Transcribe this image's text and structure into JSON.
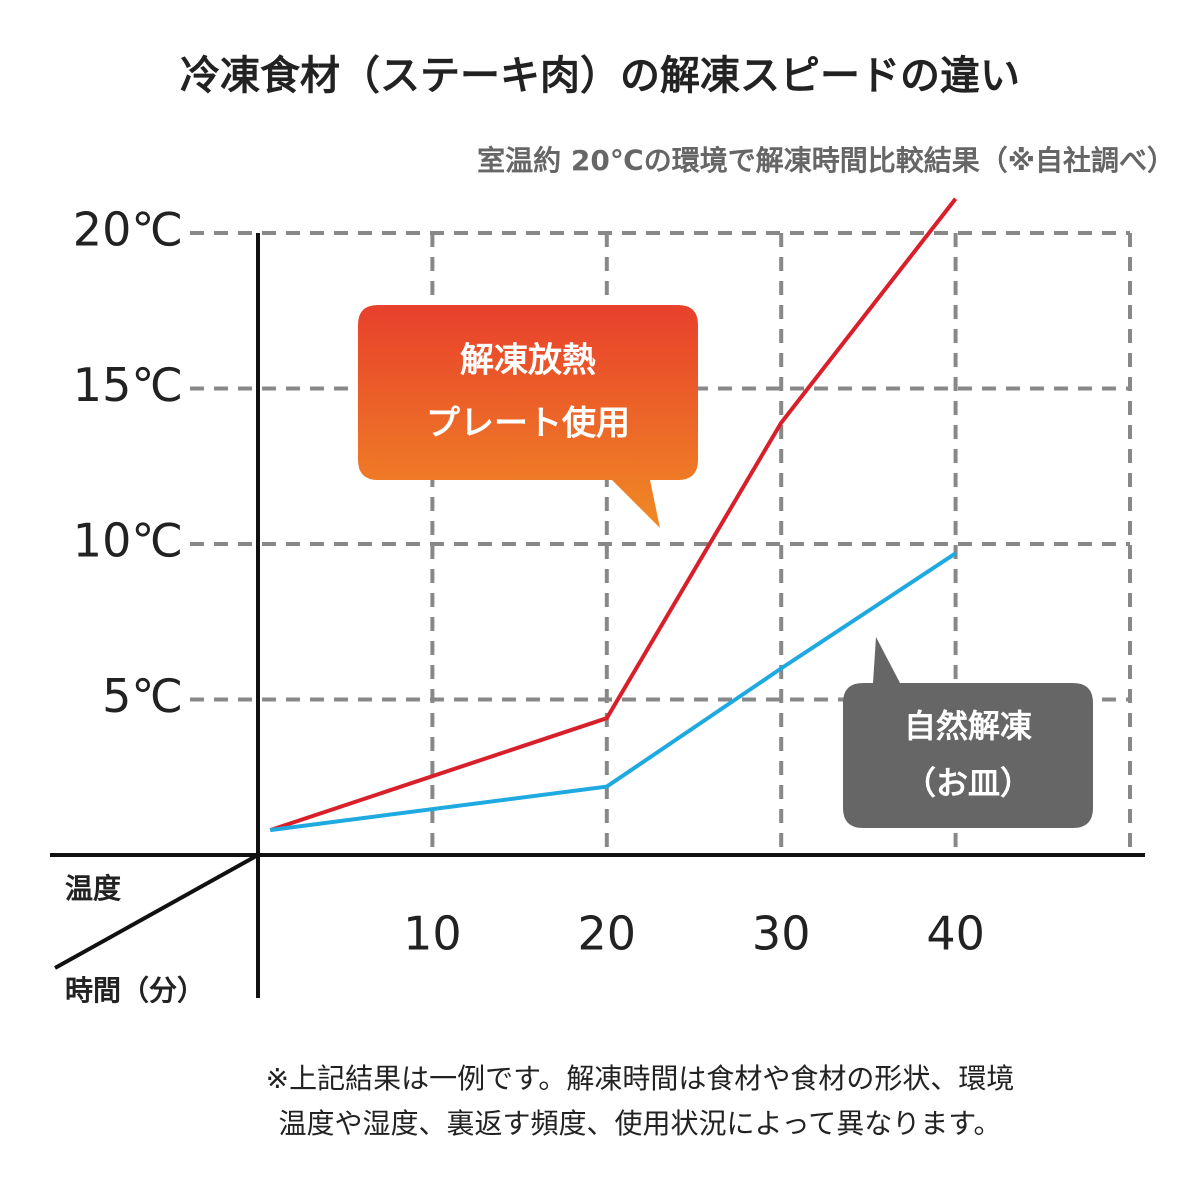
{
  "chart_data": {
    "type": "line",
    "title": "冷凍食材（ステーキ肉）の解凍スピードの違い",
    "subtitle": "室温約 20℃の環境で解凍時間比較結果（※自社調べ）",
    "y_label": "温度",
    "x_label": "時間（分）",
    "x": [
      0.7,
      20,
      30,
      40
    ],
    "series": [
      {
        "name": [
          "解凍放熱",
          "プレート使用"
        ],
        "color": "#d9202a",
        "values": [
          0.8,
          4.4,
          13.9,
          21.1
        ]
      },
      {
        "name": [
          "自然解凍",
          "（お皿）"
        ],
        "color": "#1ea9e1",
        "values": [
          0.8,
          2.2,
          6,
          9.7
        ]
      }
    ],
    "xlim": [
      0,
      50
    ],
    "ylim": [
      0,
      20
    ],
    "xticks": [
      10,
      20,
      30,
      40
    ],
    "yticks": [
      {
        "value": 5,
        "label": "5℃"
      },
      {
        "value": 10,
        "label": "10℃"
      },
      {
        "value": 15,
        "label": "15℃"
      },
      {
        "value": 20,
        "label": "20℃"
      }
    ],
    "grid": true,
    "note": [
      "※上記結果は一例です。解凍時間は食材や食材の形状、環境",
      "温度や湿度、裏返す頻度、使用状況によって異なります。"
    ]
  }
}
